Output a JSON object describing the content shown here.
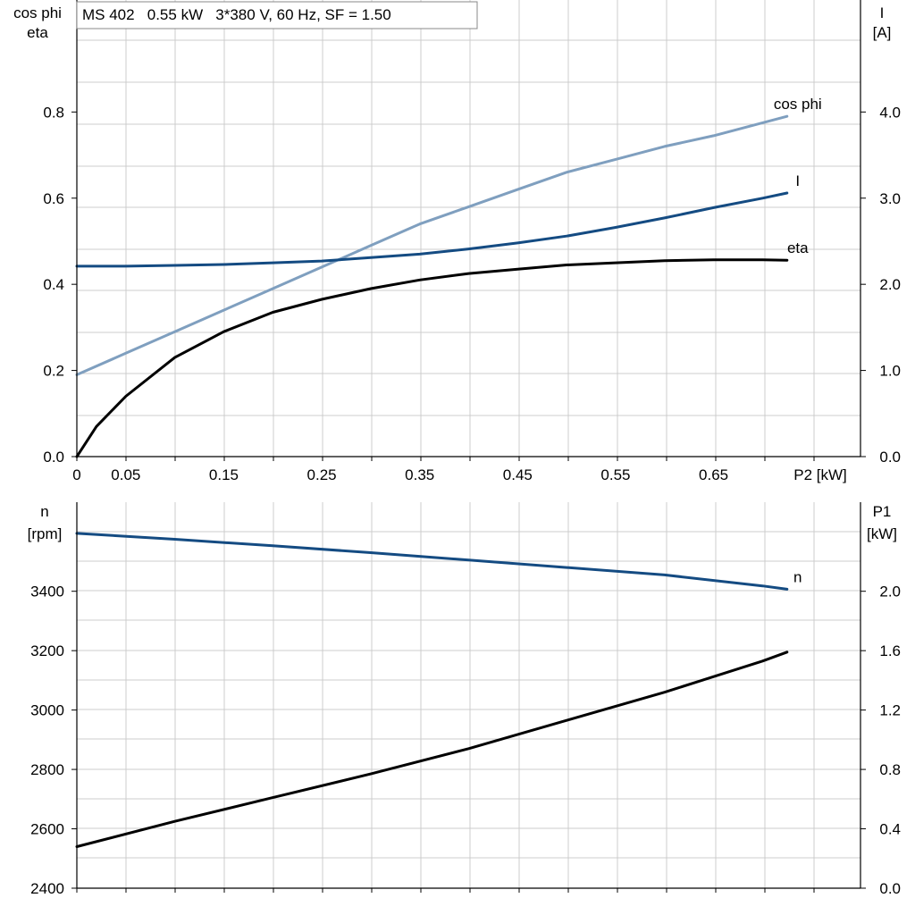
{
  "title_box": "MS 402   0.55 kW   3*380 V, 60 Hz, SF = 1.50",
  "colors": {
    "grid": "#cccccc",
    "axis": "#000000",
    "cos_phi": "#7f9fbf",
    "current": "#144b82",
    "eta": "#000000",
    "speed": "#144b82",
    "p1": "#000000"
  },
  "chart_data": [
    {
      "type": "line",
      "x_axis_label": "P2 [kW]",
      "x_range": [
        0,
        0.8
      ],
      "x_tick_labels": [
        {
          "x": 0,
          "label": "0"
        },
        {
          "x": 0.05,
          "label": "0.05"
        },
        {
          "x": 0.15,
          "label": "0.15"
        },
        {
          "x": 0.25,
          "label": "0.25"
        },
        {
          "x": 0.35,
          "label": "0.35"
        },
        {
          "x": 0.45,
          "label": "0.45"
        },
        {
          "x": 0.55,
          "label": "0.55"
        },
        {
          "x": 0.65,
          "label": "0.65"
        }
      ],
      "y_left": {
        "label_lines": [
          "cos phi",
          "eta"
        ],
        "range": [
          0,
          1.06
        ],
        "ticks": [
          0,
          0.2,
          0.4,
          0.6,
          0.8
        ],
        "tick_labels": [
          "0.0",
          "0.2",
          "0.4",
          "0.6",
          "0.8"
        ]
      },
      "y_right": {
        "label_lines": [
          "I",
          "[A]"
        ],
        "range": [
          0,
          5.3
        ],
        "ticks": [
          0,
          1,
          2,
          3,
          4
        ],
        "tick_labels": [
          "0.0",
          "1.0",
          "2.0",
          "3.0",
          "4.0"
        ]
      },
      "grid": true,
      "series": [
        {
          "name": "cos phi",
          "axis": "left",
          "color_key": "cos_phi",
          "x": [
            0,
            0.05,
            0.1,
            0.15,
            0.2,
            0.25,
            0.3,
            0.35,
            0.4,
            0.45,
            0.5,
            0.55,
            0.6,
            0.65,
            0.7,
            0.725
          ],
          "y": [
            0.19,
            0.24,
            0.29,
            0.34,
            0.39,
            0.44,
            0.49,
            0.54,
            0.58,
            0.62,
            0.66,
            0.69,
            0.72,
            0.745,
            0.775,
            0.79
          ]
        },
        {
          "name": "I",
          "axis": "right",
          "color_key": "current",
          "x": [
            0,
            0.05,
            0.1,
            0.15,
            0.2,
            0.25,
            0.3,
            0.35,
            0.4,
            0.45,
            0.5,
            0.55,
            0.6,
            0.65,
            0.7,
            0.725
          ],
          "y": [
            2.21,
            2.21,
            2.22,
            2.23,
            2.25,
            2.27,
            2.31,
            2.35,
            2.41,
            2.48,
            2.56,
            2.66,
            2.77,
            2.89,
            3.0,
            3.06
          ]
        },
        {
          "name": "eta",
          "axis": "left",
          "color_key": "eta",
          "x": [
            0,
            0.02,
            0.05,
            0.1,
            0.15,
            0.2,
            0.25,
            0.3,
            0.35,
            0.4,
            0.45,
            0.5,
            0.55,
            0.6,
            0.65,
            0.7,
            0.725
          ],
          "y": [
            0.0,
            0.07,
            0.14,
            0.23,
            0.29,
            0.335,
            0.365,
            0.39,
            0.41,
            0.425,
            0.435,
            0.445,
            0.45,
            0.455,
            0.457,
            0.457,
            0.456
          ]
        }
      ]
    },
    {
      "type": "line",
      "x_range": [
        0,
        0.8
      ],
      "y_left": {
        "label_lines": [
          "n",
          "[rpm]"
        ],
        "range": [
          2400,
          3700
        ],
        "ticks": [
          2400,
          2600,
          2800,
          3000,
          3200,
          3400
        ],
        "tick_labels": [
          "2400",
          "2600",
          "2800",
          "3000",
          "3200",
          "3400"
        ]
      },
      "y_right": {
        "label_lines": [
          "P1",
          "[kW]"
        ],
        "range": [
          0,
          2.6
        ],
        "ticks": [
          0,
          0.4,
          0.8,
          1.2,
          1.6,
          2.0
        ],
        "tick_labels": [
          "0.0",
          "0.4",
          "0.8",
          "1.2",
          "1.6",
          "2.0"
        ]
      },
      "grid": true,
      "series": [
        {
          "name": "n",
          "axis": "left",
          "color_key": "speed",
          "x": [
            0,
            0.1,
            0.2,
            0.3,
            0.4,
            0.5,
            0.6,
            0.7,
            0.725
          ],
          "y": [
            3595,
            3575,
            3553,
            3530,
            3505,
            3480,
            3455,
            3418,
            3407
          ]
        },
        {
          "axis": "right",
          "color_key": "p1",
          "x": [
            0,
            0.1,
            0.2,
            0.3,
            0.4,
            0.5,
            0.6,
            0.7,
            0.725
          ],
          "y": [
            0.28,
            0.45,
            0.61,
            0.77,
            0.94,
            1.13,
            1.32,
            1.53,
            1.59
          ]
        }
      ]
    }
  ]
}
